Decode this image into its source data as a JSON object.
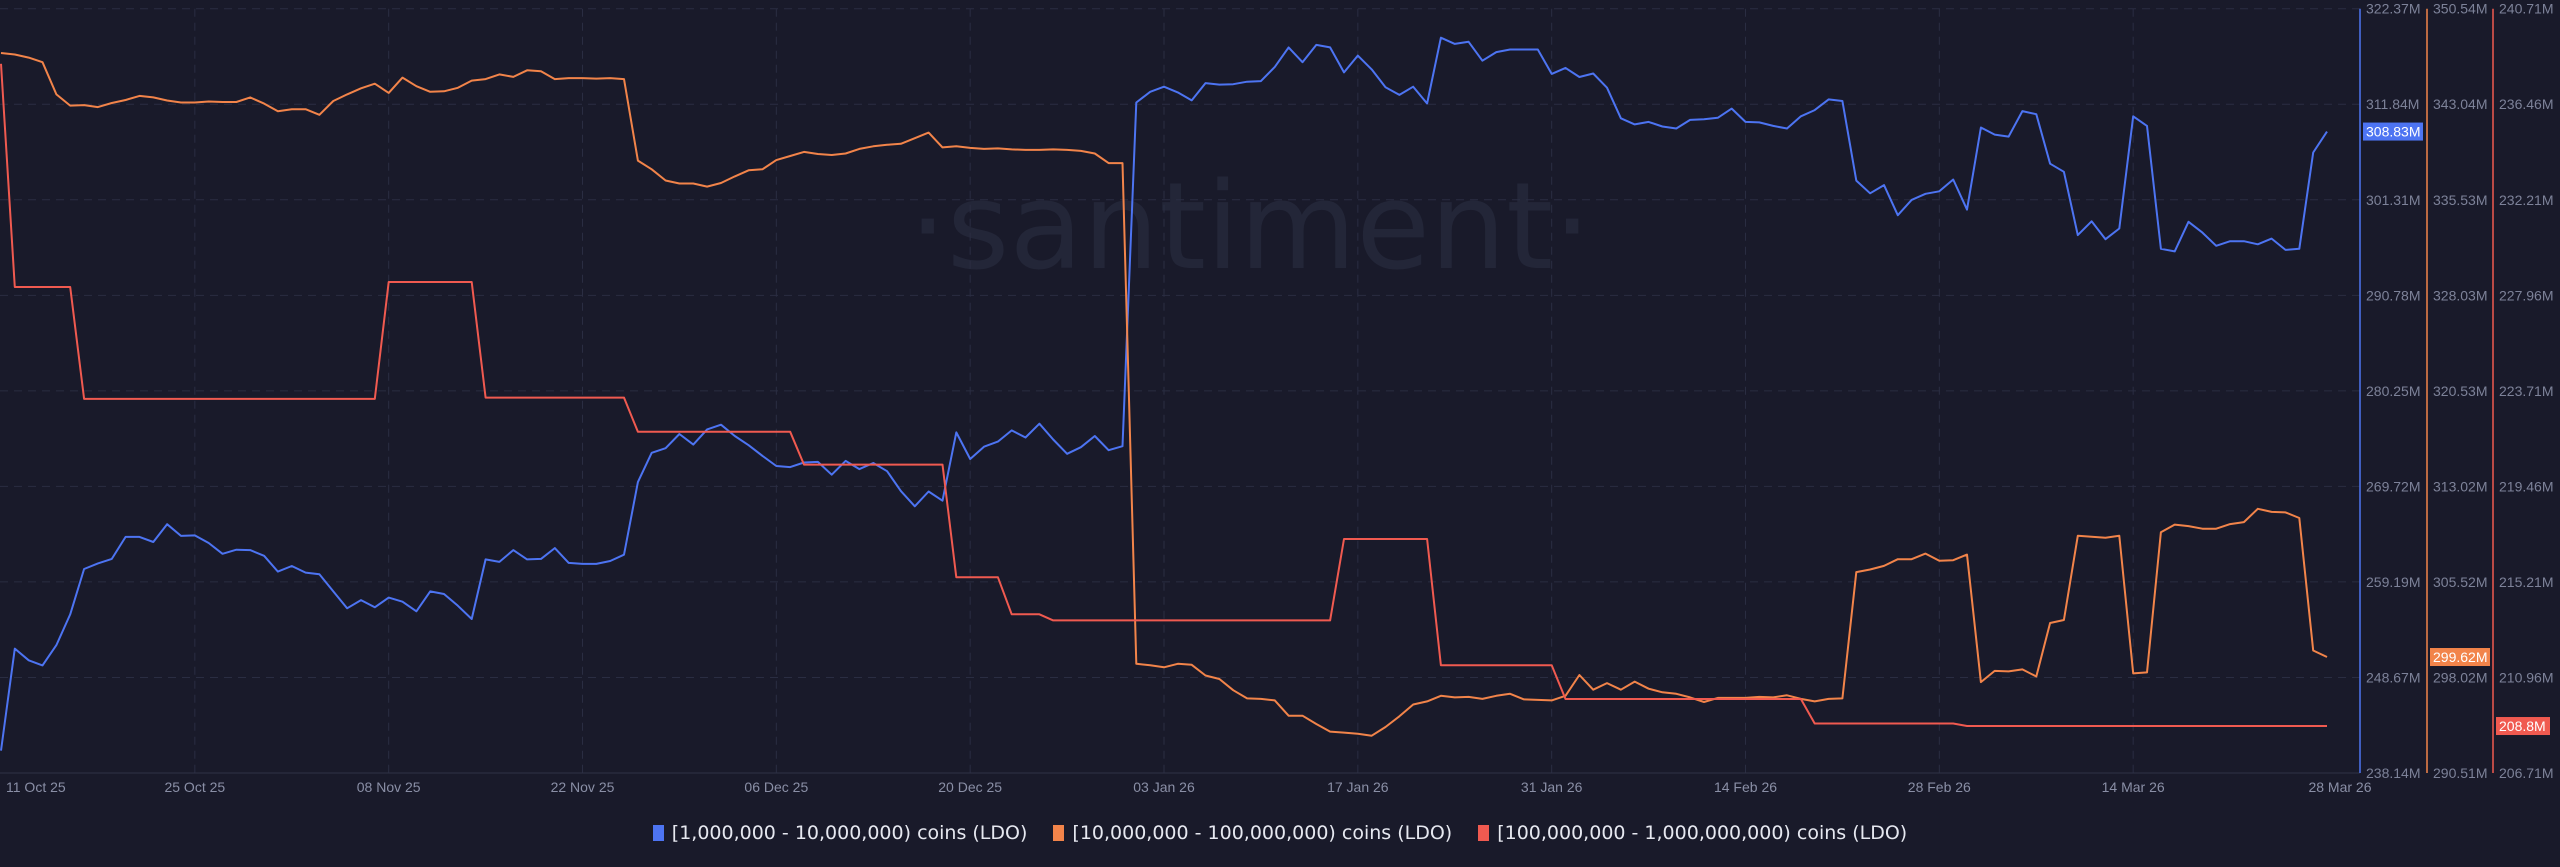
{
  "watermark": "·santiment·",
  "chart_data": {
    "type": "line",
    "x_ticks": [
      "11 Oct 25",
      "25 Oct 25",
      "08 Nov 25",
      "22 Nov 25",
      "06 Dec 25",
      "20 Dec 25",
      "03 Jan 26",
      "17 Jan 26",
      "31 Jan 26",
      "14 Feb 26",
      "28 Feb 26",
      "14 Mar 26",
      "28 Mar 26"
    ],
    "grid": true,
    "legend_position": "bottom",
    "axes": [
      {
        "series": 0,
        "range": [
          238.14,
          322.37
        ],
        "ticks": [
          "322.37M",
          "311.84M",
          "301.31M",
          "290.78M",
          "280.25M",
          "269.72M",
          "259.19M",
          "248.67M",
          "238.14M"
        ],
        "last_value_label": "308.83M"
      },
      {
        "series": 1,
        "range": [
          290.51,
          350.54
        ],
        "ticks": [
          "350.54M",
          "343.04M",
          "335.53M",
          "328.03M",
          "320.53M",
          "313.02M",
          "305.52M",
          "298.02M",
          "290.51M"
        ],
        "last_value_label": "299.62M"
      },
      {
        "series": 2,
        "range": [
          206.71,
          240.71
        ],
        "ticks": [
          "240.71M",
          "236.46M",
          "232.21M",
          "227.96M",
          "223.71M",
          "219.46M",
          "215.21M",
          "210.96M",
          "206.71M"
        ],
        "last_value_label": "208.8M"
      }
    ],
    "unit": "M",
    "x": [
      "2025-10-11",
      "2025-10-12",
      "2025-10-13",
      "2025-10-14",
      "2025-10-15",
      "2025-10-16",
      "2025-10-17",
      "2025-10-18",
      "2025-10-19",
      "2025-10-20",
      "2025-10-21",
      "2025-10-22",
      "2025-10-23",
      "2025-10-24",
      "2025-10-25",
      "2025-10-26",
      "2025-10-27",
      "2025-10-28",
      "2025-10-29",
      "2025-10-30",
      "2025-10-31",
      "2025-11-01",
      "2025-11-02",
      "2025-11-03",
      "2025-11-04",
      "2025-11-05",
      "2025-11-06",
      "2025-11-07",
      "2025-11-08",
      "2025-11-09",
      "2025-11-10",
      "2025-11-11",
      "2025-11-12",
      "2025-11-13",
      "2025-11-14",
      "2025-11-15",
      "2025-11-16",
      "2025-11-17",
      "2025-11-18",
      "2025-11-19",
      "2025-11-20",
      "2025-11-21",
      "2025-11-22",
      "2025-11-23",
      "2025-11-24",
      "2025-11-25",
      "2025-11-26",
      "2025-11-27",
      "2025-11-28",
      "2025-11-29",
      "2025-11-30",
      "2025-12-01",
      "2025-12-02",
      "2025-12-03",
      "2025-12-04",
      "2025-12-05",
      "2025-12-06",
      "2025-12-07",
      "2025-12-08",
      "2025-12-09",
      "2025-12-10",
      "2025-12-11",
      "2025-12-12",
      "2025-12-13",
      "2025-12-14",
      "2025-12-15",
      "2025-12-16",
      "2025-12-17",
      "2025-12-18",
      "2025-12-19",
      "2025-12-20",
      "2025-12-21",
      "2025-12-22",
      "2025-12-23",
      "2025-12-24",
      "2025-12-25",
      "2025-12-26",
      "2025-12-27",
      "2025-12-28",
      "2025-12-29",
      "2025-12-30",
      "2025-12-31",
      "2026-01-01",
      "2026-01-02",
      "2026-01-03",
      "2026-01-04",
      "2026-01-05",
      "2026-01-06",
      "2026-01-07",
      "2026-01-08",
      "2026-01-09",
      "2026-01-10",
      "2026-01-11",
      "2026-01-12",
      "2026-01-13",
      "2026-01-14",
      "2026-01-15",
      "2026-01-16",
      "2026-01-17",
      "2026-01-18",
      "2026-01-19",
      "2026-01-20",
      "2026-01-21",
      "2026-01-22",
      "2026-01-23",
      "2026-01-24",
      "2026-01-25",
      "2026-01-26",
      "2026-01-27",
      "2026-01-28",
      "2026-01-29",
      "2026-01-30",
      "2026-01-31",
      "2026-02-01",
      "2026-02-02",
      "2026-02-03",
      "2026-02-04",
      "2026-02-05",
      "2026-02-06",
      "2026-02-07",
      "2026-02-08",
      "2026-02-09",
      "2026-02-10",
      "2026-02-11",
      "2026-02-12",
      "2026-02-13",
      "2026-02-14",
      "2026-02-15",
      "2026-02-16",
      "2026-02-17",
      "2026-02-18",
      "2026-02-19",
      "2026-02-20",
      "2026-02-21",
      "2026-02-22",
      "2026-02-23",
      "2026-02-24",
      "2026-02-25",
      "2026-02-26",
      "2026-02-27",
      "2026-02-28",
      "2026-03-01",
      "2026-03-02",
      "2026-03-03",
      "2026-03-04",
      "2026-03-05",
      "2026-03-06",
      "2026-03-07",
      "2026-03-08",
      "2026-03-09",
      "2026-03-10",
      "2026-03-11",
      "2026-03-12",
      "2026-03-13",
      "2026-03-14",
      "2026-03-15",
      "2026-03-16",
      "2026-03-17",
      "2026-03-18",
      "2026-03-19",
      "2026-03-20",
      "2026-03-21",
      "2026-03-22",
      "2026-03-23",
      "2026-03-24",
      "2026-03-25",
      "2026-03-26",
      "2026-03-27",
      "2026-03-28"
    ],
    "series": [
      {
        "name": "[1,000,000 - 10,000,000) coins (LDO)",
        "color": "#4d74f2",
        "values": [
          240.61,
          251.85,
          250.56,
          250.0,
          252.24,
          255.62,
          260.62,
          261.24,
          261.74,
          264.16,
          264.16,
          263.6,
          265.56,
          264.27,
          264.33,
          263.49,
          262.3,
          262.75,
          262.7,
          262.08,
          260.34,
          260.95,
          260.22,
          260.05,
          258.15,
          256.29,
          257.19,
          256.4,
          257.47,
          257.02,
          255.96,
          258.15,
          257.87,
          256.57,
          255.11,
          261.68,
          261.4,
          262.7,
          261.68,
          261.74,
          262.92,
          261.29,
          261.18,
          261.18,
          261.5,
          262.2,
          270.2,
          273.43,
          273.93,
          275.5,
          274.33,
          276.01,
          276.52,
          275.28,
          274.27,
          273.09,
          271.97,
          271.85,
          272.36,
          272.42,
          271.01,
          272.53,
          271.63,
          272.3,
          271.4,
          269.21,
          267.53,
          269.16,
          268.15,
          275.68,
          272.75,
          274.1,
          274.66,
          275.9,
          275.11,
          276.63,
          274.89,
          273.32,
          274.05,
          275.28,
          273.71,
          274.16,
          312.03,
          313.21,
          313.77,
          313.15,
          312.26,
          314.17,
          314.0,
          314.05,
          314.33,
          314.39,
          315.96,
          318.1,
          316.47,
          318.38,
          318.1,
          315.35,
          317.2,
          315.68,
          313.72,
          312.87,
          313.77,
          311.92,
          319.17,
          318.49,
          318.72,
          316.64,
          317.59,
          317.87,
          317.87,
          317.87,
          315.18,
          315.85,
          314.84,
          315.23,
          313.66,
          310.29,
          309.62,
          309.9,
          309.39,
          309.17,
          310.12,
          310.18,
          310.35,
          311.36,
          309.9,
          309.84,
          309.45,
          309.17,
          310.51,
          311.19,
          312.37,
          312.2,
          303.43,
          302.03,
          302.93,
          299.61,
          301.3,
          301.97,
          302.25,
          303.55,
          300.23,
          309.28,
          308.49,
          308.27,
          311.08,
          310.74,
          305.29,
          304.39,
          297.42,
          298.94,
          296.97,
          298.15,
          310.51,
          309.45,
          295.91,
          295.62,
          298.88,
          297.7,
          296.24,
          296.75,
          296.75,
          296.41,
          297.03,
          295.79,
          295.91,
          306.52,
          308.83
        ]
      },
      {
        "name": "[10,000,000 - 100,000,000) coins (LDO)",
        "color": "#f2844a",
        "values": [
          347.06,
          346.94,
          346.7,
          346.34,
          343.81,
          342.93,
          342.97,
          342.81,
          343.13,
          343.37,
          343.69,
          343.57,
          343.33,
          343.17,
          343.17,
          343.25,
          343.21,
          343.21,
          343.57,
          343.09,
          342.49,
          342.65,
          342.65,
          342.21,
          343.29,
          343.81,
          344.29,
          344.65,
          343.93,
          345.13,
          344.45,
          344.01,
          344.05,
          344.33,
          344.89,
          345.01,
          345.38,
          345.18,
          345.7,
          345.62,
          345.01,
          345.09,
          345.09,
          345.05,
          345.09,
          345.01,
          338.61,
          337.93,
          337.05,
          336.81,
          336.81,
          336.57,
          336.85,
          337.37,
          337.85,
          337.93,
          338.65,
          338.97,
          339.29,
          339.13,
          339.05,
          339.17,
          339.53,
          339.73,
          339.85,
          339.93,
          340.37,
          340.81,
          339.65,
          339.73,
          339.61,
          339.53,
          339.57,
          339.49,
          339.45,
          339.45,
          339.49,
          339.45,
          339.37,
          339.17,
          338.41,
          338.41,
          299.09,
          298.97,
          298.81,
          299.09,
          299.01,
          298.17,
          297.89,
          297.01,
          296.37,
          296.33,
          296.21,
          295.01,
          295.01,
          294.36,
          293.76,
          293.68,
          293.6,
          293.44,
          294.12,
          294.96,
          295.89,
          296.13,
          296.57,
          296.45,
          296.49,
          296.33,
          296.57,
          296.73,
          296.29,
          296.25,
          296.21,
          296.57,
          298.21,
          297.05,
          297.57,
          297.05,
          297.69,
          297.13,
          296.85,
          296.73,
          296.45,
          296.09,
          296.41,
          296.41,
          296.41,
          296.49,
          296.45,
          296.61,
          296.33,
          296.13,
          296.33,
          296.37,
          306.29,
          306.49,
          306.78,
          307.3,
          307.3,
          307.74,
          307.18,
          307.22,
          307.66,
          297.65,
          298.53,
          298.49,
          298.65,
          298.09,
          302.29,
          302.53,
          309.14,
          309.06,
          308.98,
          309.14,
          298.33,
          298.41,
          309.42,
          310.02,
          309.9,
          309.7,
          309.7,
          310.06,
          310.22,
          311.26,
          311.02,
          310.98,
          310.54,
          300.13,
          299.62
        ]
      },
      {
        "name": "[100,000,000 - 1,000,000,000) coins (LDO)",
        "color": "#f05a50",
        "values": [
          238.26,
          228.33,
          228.33,
          228.33,
          228.33,
          228.33,
          223.35,
          223.35,
          223.35,
          223.35,
          223.35,
          223.35,
          223.35,
          223.35,
          223.35,
          223.35,
          223.35,
          223.35,
          223.35,
          223.35,
          223.35,
          223.35,
          223.35,
          223.35,
          223.35,
          223.35,
          223.35,
          223.35,
          228.55,
          228.55,
          228.55,
          228.55,
          228.55,
          228.55,
          228.55,
          223.41,
          223.41,
          223.41,
          223.41,
          223.41,
          223.41,
          223.41,
          223.41,
          223.41,
          223.41,
          223.41,
          221.89,
          221.89,
          221.89,
          221.89,
          221.89,
          221.89,
          221.89,
          221.89,
          221.89,
          221.89,
          221.89,
          221.89,
          220.43,
          220.43,
          220.43,
          220.43,
          220.43,
          220.43,
          220.43,
          220.43,
          220.43,
          220.43,
          220.43,
          215.42,
          215.42,
          215.42,
          215.42,
          213.77,
          213.77,
          213.77,
          213.5,
          213.5,
          213.5,
          213.5,
          213.5,
          213.5,
          213.5,
          213.5,
          213.5,
          213.5,
          213.5,
          213.5,
          213.5,
          213.5,
          213.5,
          213.5,
          213.5,
          213.5,
          213.5,
          213.5,
          213.5,
          217.12,
          217.12,
          217.12,
          217.12,
          217.12,
          217.12,
          217.12,
          211.5,
          211.5,
          211.5,
          211.5,
          211.5,
          211.5,
          211.5,
          211.5,
          211.5,
          210.0,
          210.0,
          210.0,
          210.0,
          210.0,
          210.0,
          210.0,
          210.0,
          210.0,
          210.0,
          210.0,
          210.0,
          210.0,
          210.0,
          210.0,
          210.0,
          210.0,
          210.0,
          208.91,
          208.91,
          208.91,
          208.91,
          208.91,
          208.91,
          208.91,
          208.91,
          208.91,
          208.91,
          208.91,
          208.8,
          208.8,
          208.8,
          208.8,
          208.8,
          208.8,
          208.8,
          208.8,
          208.8,
          208.8,
          208.8,
          208.8,
          208.8,
          208.8,
          208.8,
          208.8,
          208.8,
          208.8,
          208.8,
          208.8,
          208.8,
          208.8,
          208.8,
          208.8,
          208.8,
          208.8,
          208.8
        ]
      }
    ]
  }
}
